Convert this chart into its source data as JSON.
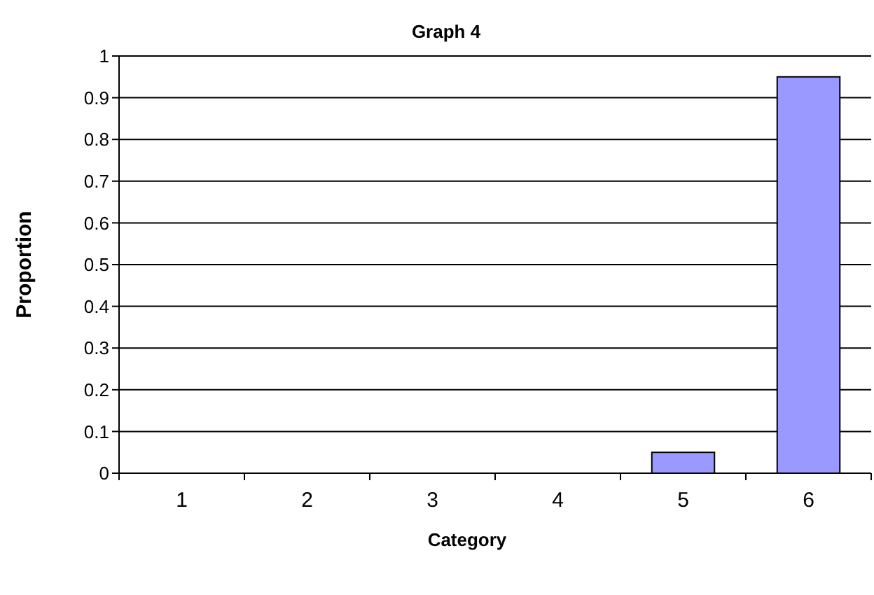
{
  "chart_data": {
    "type": "bar",
    "title": "Graph 4",
    "xlabel": "Category",
    "ylabel": "Proportion",
    "categories": [
      "1",
      "2",
      "3",
      "4",
      "5",
      "6"
    ],
    "values": [
      0,
      0,
      0,
      0,
      0.05,
      0.95
    ],
    "color": "#9999ff",
    "ylim": [
      0,
      1
    ],
    "yticks": [
      0,
      0.1,
      0.2,
      0.3,
      0.4,
      0.5,
      0.6,
      0.7,
      0.8,
      0.9,
      1
    ],
    "grid": "y"
  }
}
